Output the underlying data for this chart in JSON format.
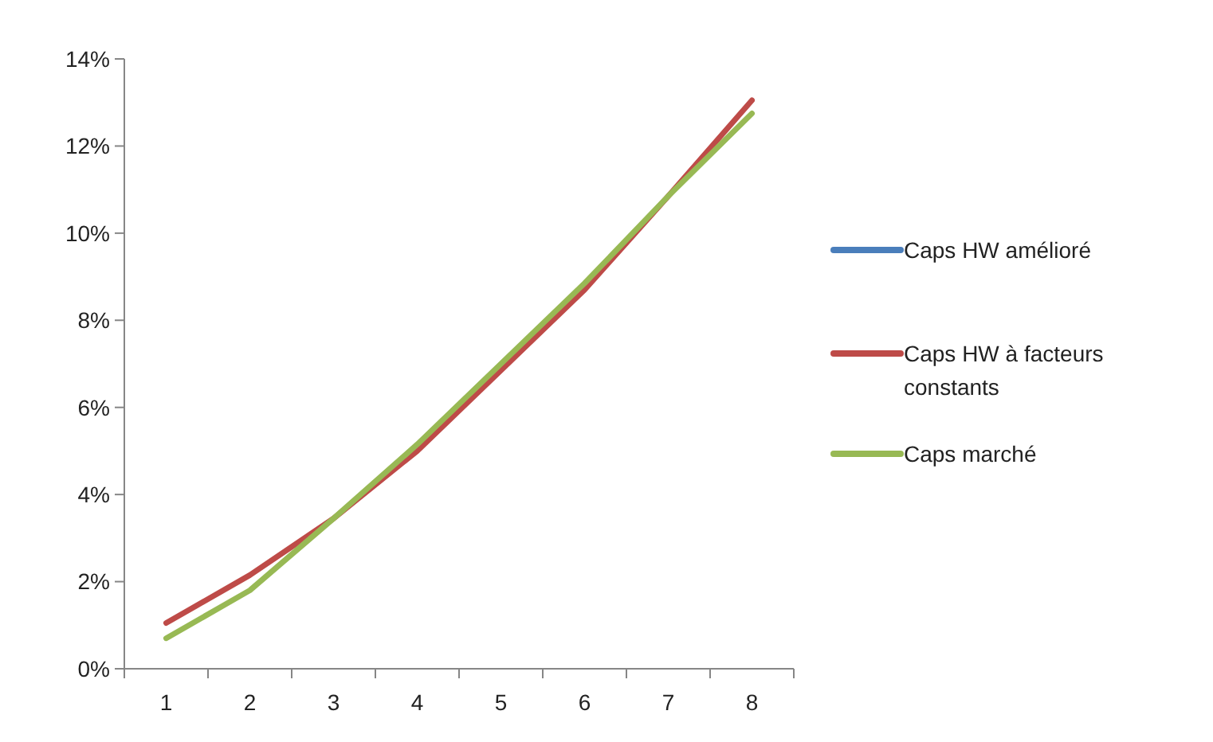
{
  "chart_data": {
    "type": "line",
    "categories": [
      "1",
      "2",
      "3",
      "4",
      "5",
      "6",
      "7",
      "8"
    ],
    "series": [
      {
        "name": "Caps HW amélioré",
        "color": "#4a7ebb",
        "values": [
          null,
          null,
          null,
          null,
          null,
          null,
          null,
          null
        ]
      },
      {
        "name": "Caps HW à facteurs constants",
        "color": "#be4b48",
        "values": [
          1.05,
          2.15,
          3.45,
          5.0,
          6.85,
          8.7,
          10.85,
          13.05
        ]
      },
      {
        "name": "Caps marché",
        "color": "#98b954",
        "values": [
          0.7,
          1.8,
          3.45,
          5.15,
          7.0,
          8.85,
          10.85,
          12.75
        ]
      }
    ],
    "ylim": [
      0,
      14
    ],
    "yticks": [
      {
        "value": 0,
        "label": "0%"
      },
      {
        "value": 2,
        "label": "2%"
      },
      {
        "value": 4,
        "label": "4%"
      },
      {
        "value": 6,
        "label": "6%"
      },
      {
        "value": 8,
        "label": "8%"
      },
      {
        "value": 10,
        "label": "10%"
      },
      {
        "value": 12,
        "label": "12%"
      },
      {
        "value": 14,
        "label": "14%"
      }
    ],
    "legend": "right",
    "grid": false,
    "marker": "none",
    "line_style": "solid"
  }
}
